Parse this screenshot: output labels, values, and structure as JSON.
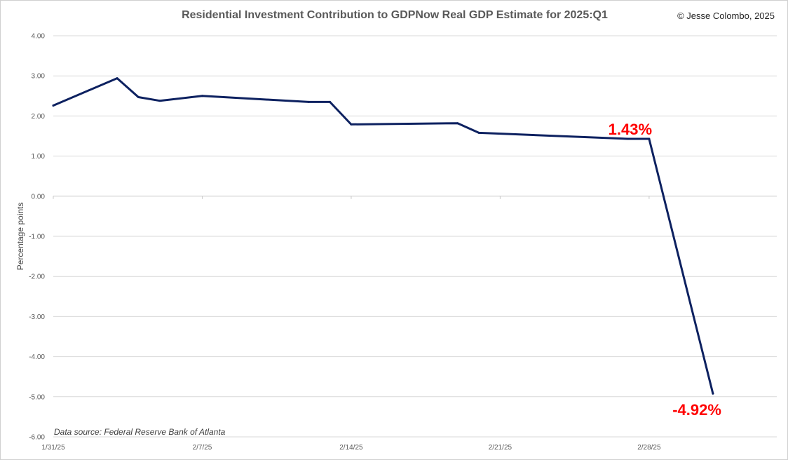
{
  "chart_data": {
    "type": "line",
    "title": "Residential Investment Contribution to GDPNow Real GDP Estimate for 2025:Q1",
    "copyright": "© Jesse Colombo, 2025",
    "source_note": "Data source: Federal Reserve Bank of Atlanta",
    "ylabel": "Percentage points",
    "xlabel": "",
    "ylim": [
      -6,
      4
    ],
    "yticks": [
      4,
      3,
      2,
      1,
      0,
      -1,
      -2,
      -3,
      -4,
      -5,
      -6
    ],
    "ytick_labels": [
      "4.00",
      "3.00",
      "2.00",
      "1.00",
      "0.00",
      "-1.00",
      "-2.00",
      "-3.00",
      "-4.00",
      "-5.00",
      "-6.00"
    ],
    "xlim": [
      "2025-01-31",
      "2025-03-06"
    ],
    "xticks": [
      "2025-01-31",
      "2025-02-07",
      "2025-02-14",
      "2025-02-21",
      "2025-02-28"
    ],
    "xtick_labels": [
      "1/31/25",
      "2/7/25",
      "2/14/25",
      "2/21/25",
      "2/28/25"
    ],
    "grid": true,
    "line_color": "#0d2160",
    "annotation_color": "#ff0000",
    "series": [
      {
        "x": [
          "2025-01-31",
          "2025-02-03",
          "2025-02-04",
          "2025-02-05",
          "2025-02-07",
          "2025-02-12",
          "2025-02-13",
          "2025-02-14",
          "2025-02-19",
          "2025-02-20",
          "2025-02-27",
          "2025-02-28",
          "2025-03-03"
        ],
        "y": [
          2.26,
          2.94,
          2.47,
          2.38,
          2.5,
          2.35,
          2.35,
          1.79,
          1.82,
          1.58,
          1.43,
          1.43,
          -4.92
        ]
      }
    ],
    "annotations": [
      {
        "text": "1.43%",
        "x": "2025-02-28",
        "y": 1.43
      },
      {
        "text": "-4.92%",
        "x": "2025-03-03",
        "y": -4.92
      }
    ]
  }
}
